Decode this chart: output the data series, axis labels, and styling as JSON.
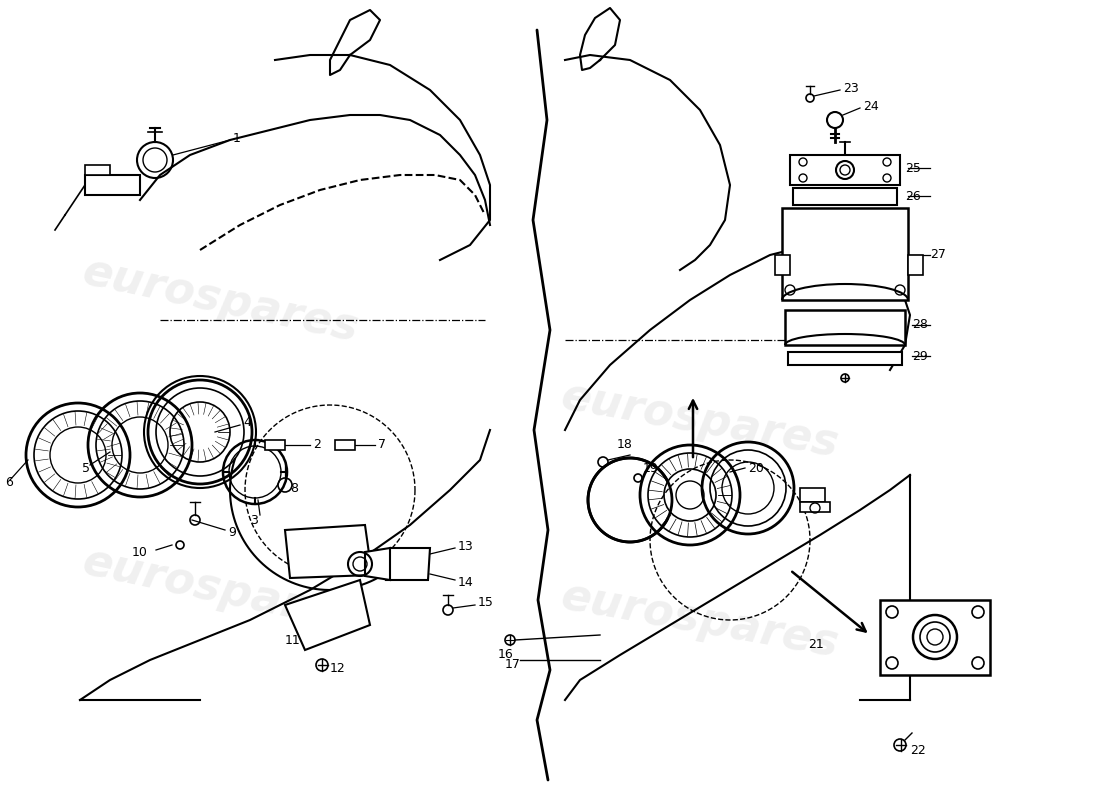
{
  "background_color": "#ffffff",
  "line_color": "#000000",
  "watermark_text": "eurospares",
  "fig_width": 11.0,
  "fig_height": 8.0,
  "dpi": 100
}
